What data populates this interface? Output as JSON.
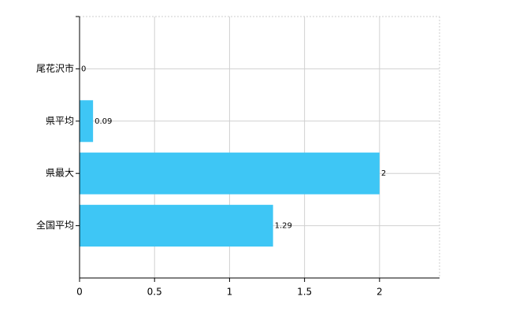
{
  "chart_data": {
    "type": "bar",
    "orientation": "horizontal",
    "categories": [
      "尾花沢市",
      "県平均",
      "県最大",
      "全国平均"
    ],
    "values": [
      0,
      0.09,
      2,
      1.29
    ],
    "color": "#3ec6f5",
    "xlim": [
      0,
      2.4
    ],
    "xticks": [
      0,
      0.5,
      1,
      1.5,
      2
    ],
    "grid": true
  }
}
